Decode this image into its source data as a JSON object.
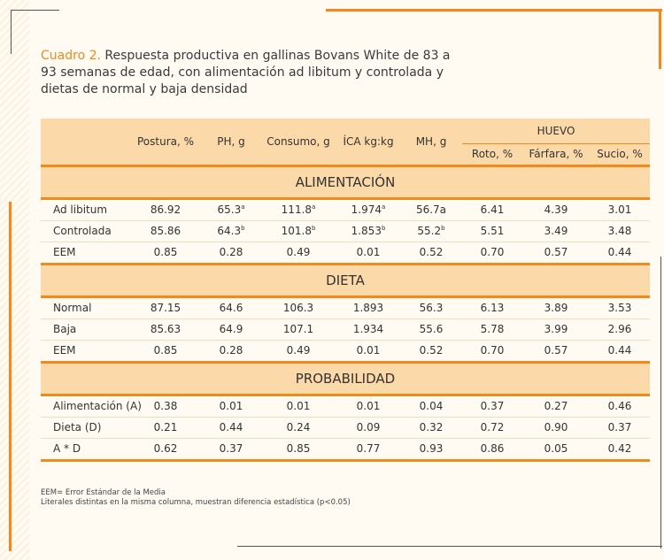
{
  "caption": {
    "lead": "Cuadro 2.",
    "text": " Respuesta productiva en gallinas Bovans White de 83 a 93 semanas de edad, con alimentación ad libitum y controlada y dietas de normal y baja densidad"
  },
  "table": {
    "headers": [
      "Postura, %",
      "PH, g",
      "Consumo, g",
      "ÍCA kg:kg",
      "MH, g"
    ],
    "group_header": "HUEVO",
    "sub_headers": [
      "Roto, %",
      "Fárfara, %",
      "Sucio, %"
    ],
    "sections": {
      "alimentacion": {
        "title": "ALIMENTACIÓN",
        "rows": [
          {
            "label": "Ad libitum",
            "v": [
              "86.92",
              "65.3",
              "111.8",
              "1.974",
              "56.7a",
              "6.41",
              "4.39",
              "3.01"
            ],
            "sup": [
              "",
              "a",
              "a",
              "a",
              "",
              "",
              "",
              ""
            ]
          },
          {
            "label": "Controlada",
            "v": [
              "85.86",
              "64.3",
              "101.8",
              "1.853",
              "55.2",
              "5.51",
              "3.49",
              "3.48"
            ],
            "sup": [
              "",
              "b",
              "b",
              "b",
              "b",
              "",
              "",
              ""
            ]
          },
          {
            "label": "EEM",
            "v": [
              "0.85",
              "0.28",
              "0.49",
              "0.01",
              "0.52",
              "0.70",
              "0.57",
              "0.44"
            ],
            "sup": [
              "",
              "",
              "",
              "",
              "",
              "",
              "",
              ""
            ]
          }
        ]
      },
      "dieta": {
        "title": "DIETA",
        "rows": [
          {
            "label": "Normal",
            "v": [
              "87.15",
              "64.6",
              "106.3",
              "1.893",
              "56.3",
              "6.13",
              "3.89",
              "3.53"
            ],
            "sup": [
              "",
              "",
              "",
              "",
              "",
              "",
              "",
              ""
            ]
          },
          {
            "label": "Baja",
            "v": [
              "85.63",
              "64.9",
              "107.1",
              "1.934",
              "55.6",
              "5.78",
              "3.99",
              "2.96"
            ],
            "sup": [
              "",
              "",
              "",
              "",
              "",
              "",
              "",
              ""
            ]
          },
          {
            "label": "EEM",
            "v": [
              "0.85",
              "0.28",
              "0.49",
              "0.01",
              "0.52",
              "0.70",
              "0.57",
              "0.44"
            ],
            "sup": [
              "",
              "",
              "",
              "",
              "",
              "",
              "",
              ""
            ]
          }
        ]
      },
      "probabilidad": {
        "title": "PROBABILIDAD",
        "rows": [
          {
            "label": "Alimentación (A)",
            "v": [
              "0.38",
              "0.01",
              "0.01",
              "0.01",
              "0.04",
              "0.37",
              "0.27",
              "0.46"
            ],
            "sup": [
              "",
              "",
              "",
              "",
              "",
              "",
              "",
              ""
            ]
          },
          {
            "label": "Dieta (D)",
            "v": [
              "0.21",
              "0.44",
              "0.24",
              "0.09",
              "0.32",
              "0.72",
              "0.90",
              "0.37"
            ],
            "sup": [
              "",
              "",
              "",
              "",
              "",
              "",
              "",
              ""
            ]
          },
          {
            "label": "A * D",
            "v": [
              "0.62",
              "0.37",
              "0.85",
              "0.77",
              "0.93",
              "0.86",
              "0.05",
              "0.42"
            ],
            "sup": [
              "",
              "",
              "",
              "",
              "",
              "",
              "",
              ""
            ]
          }
        ]
      }
    }
  },
  "notes": [
    "EEM= Error Estándar de la Media",
    "Literales distintas en la misma columna, muestran diferencia estadística (p<0.05)"
  ],
  "colors": {
    "accent": "#f08a1c",
    "header_fill": "#fcd9a8",
    "background": "#fffaf2"
  }
}
